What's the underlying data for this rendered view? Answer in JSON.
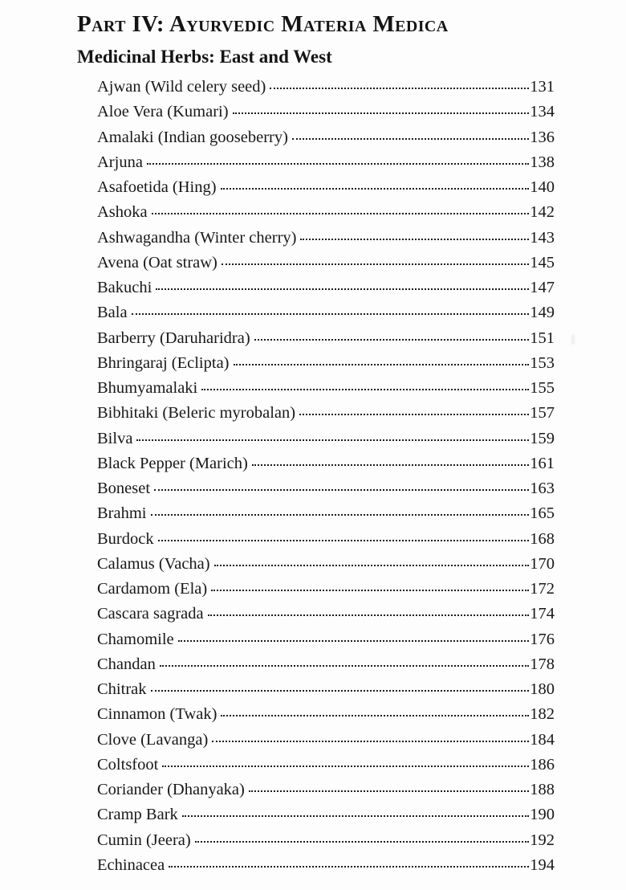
{
  "page": {
    "part_title": "Part IV: Ayurvedic Materia Medica",
    "section_title": "Medicinal Herbs: East and West"
  },
  "toc": {
    "entries": [
      {
        "label": "Ajwan (Wild celery seed)",
        "page": "131"
      },
      {
        "label": "Aloe Vera (Kumari)",
        "page": "134"
      },
      {
        "label": "Amalaki (Indian gooseberry)",
        "page": "136"
      },
      {
        "label": "Arjuna",
        "page": "138"
      },
      {
        "label": "Asafoetida (Hing)",
        "page": "140"
      },
      {
        "label": "Ashoka",
        "page": "142"
      },
      {
        "label": "Ashwagandha (Winter cherry)",
        "page": "143"
      },
      {
        "label": "Avena (Oat straw)",
        "page": "145"
      },
      {
        "label": "Bakuchi",
        "page": "147"
      },
      {
        "label": "Bala",
        "page": "149"
      },
      {
        "label": "Barberry (Daruharidra)",
        "page": "151"
      },
      {
        "label": "Bhringaraj (Eclipta)",
        "page": "153"
      },
      {
        "label": "Bhumyamalaki",
        "page": "155"
      },
      {
        "label": "Bibhitaki (Beleric myrobalan)",
        "page": "157"
      },
      {
        "label": "Bilva",
        "page": "159"
      },
      {
        "label": "Black Pepper (Marich)",
        "page": "161"
      },
      {
        "label": "Boneset",
        "page": "163"
      },
      {
        "label": "Brahmi",
        "page": "165"
      },
      {
        "label": "Burdock",
        "page": "168"
      },
      {
        "label": "Calamus (Vacha)",
        "page": "170"
      },
      {
        "label": "Cardamom (Ela)",
        "page": "172"
      },
      {
        "label": "Cascara sagrada",
        "page": "174"
      },
      {
        "label": "Chamomile",
        "page": "176"
      },
      {
        "label": "Chandan",
        "page": "178"
      },
      {
        "label": "Chitrak",
        "page": "180"
      },
      {
        "label": "Cinnamon (Twak)",
        "page": "182"
      },
      {
        "label": "Clove (Lavanga)",
        "page": "184"
      },
      {
        "label": "Coltsfoot",
        "page": "186"
      },
      {
        "label": "Coriander (Dhanyaka)",
        "page": "188"
      },
      {
        "label": "Cramp Bark",
        "page": "190"
      },
      {
        "label": "Cumin (Jeera)",
        "page": "192"
      },
      {
        "label": "Echinacea",
        "page": "194"
      }
    ]
  }
}
